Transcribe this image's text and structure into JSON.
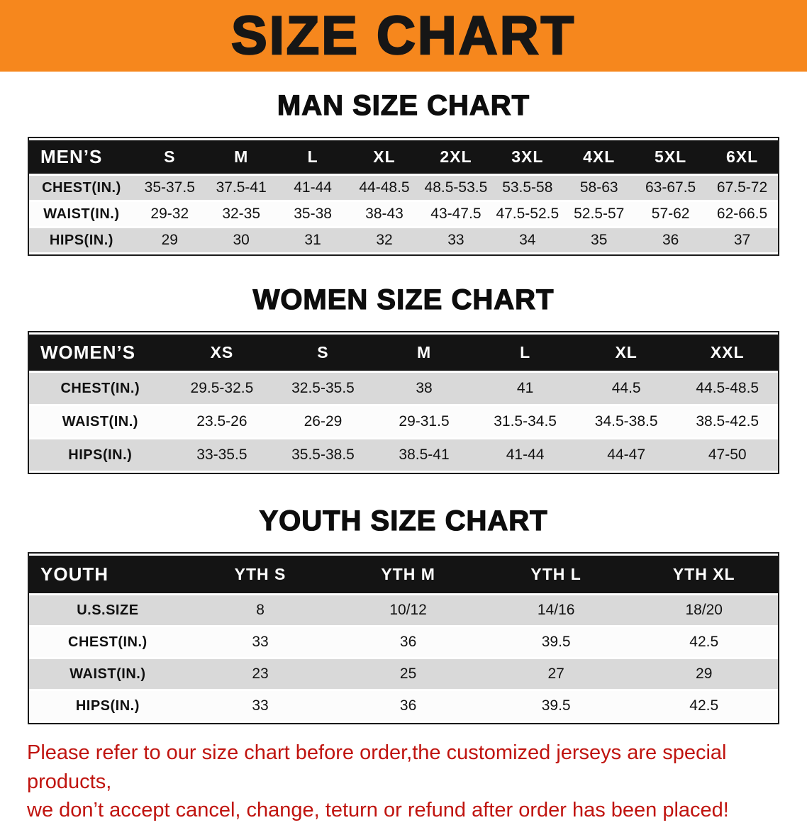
{
  "banner": {
    "title": "SIZE CHART"
  },
  "chart_data": [
    {
      "type": "table",
      "title": "MAN SIZE CHART",
      "header": [
        "MEN’S",
        "S",
        "M",
        "L",
        "XL",
        "2XL",
        "3XL",
        "4XL",
        "5XL",
        "6XL"
      ],
      "rows": [
        {
          "label": "CHEST(IN.)",
          "values": [
            "35-37.5",
            "37.5-41",
            "41-44",
            "44-48.5",
            "48.5-53.5",
            "53.5-58",
            "58-63",
            "63-67.5",
            "67.5-72"
          ]
        },
        {
          "label": "WAIST(IN.)",
          "values": [
            "29-32",
            "32-35",
            "35-38",
            "38-43",
            "43-47.5",
            "47.5-52.5",
            "52.5-57",
            "57-62",
            "62-66.5"
          ]
        },
        {
          "label": "HIPS(IN.)",
          "values": [
            "29",
            "30",
            "31",
            "32",
            "33",
            "34",
            "35",
            "36",
            "37"
          ]
        }
      ]
    },
    {
      "type": "table",
      "title": "WOMEN SIZE CHART",
      "header": [
        "WOMEN’S",
        "XS",
        "S",
        "M",
        "L",
        "XL",
        "XXL"
      ],
      "rows": [
        {
          "label": "CHEST(IN.)",
          "values": [
            "29.5-32.5",
            "32.5-35.5",
            "38",
            "41",
            "44.5",
            "44.5-48.5"
          ]
        },
        {
          "label": "WAIST(IN.)",
          "values": [
            "23.5-26",
            "26-29",
            "29-31.5",
            "31.5-34.5",
            "34.5-38.5",
            "38.5-42.5"
          ]
        },
        {
          "label": "HIPS(IN.)",
          "values": [
            "33-35.5",
            "35.5-38.5",
            "38.5-41",
            "41-44",
            "44-47",
            "47-50"
          ]
        }
      ]
    },
    {
      "type": "table",
      "title": "YOUTH SIZE CHART",
      "header": [
        "YOUTH",
        "YTH S",
        "YTH M",
        "YTH L",
        "YTH XL"
      ],
      "rows": [
        {
          "label": "U.S.SIZE",
          "values": [
            "8",
            "10/12",
            "14/16",
            "18/20"
          ]
        },
        {
          "label": "CHEST(IN.)",
          "values": [
            "33",
            "36",
            "39.5",
            "42.5"
          ]
        },
        {
          "label": "WAIST(IN.)",
          "values": [
            "23",
            "25",
            "27",
            "29"
          ]
        },
        {
          "label": "HIPS(IN.)",
          "values": [
            "33",
            "36",
            "39.5",
            "42.5"
          ]
        }
      ]
    }
  ],
  "disclaimer": {
    "line1": "Please refer to our size chart before order,the customized jerseys are special products,",
    "line2": "we don’t accept cancel, change, teturn or refund after order has been placed!"
  },
  "colors": {
    "banner_bg": "#F6871D",
    "table_header_bg": "#141414",
    "row_stripe": "#D9D9D9",
    "disclaimer_red": "#C0140F"
  }
}
